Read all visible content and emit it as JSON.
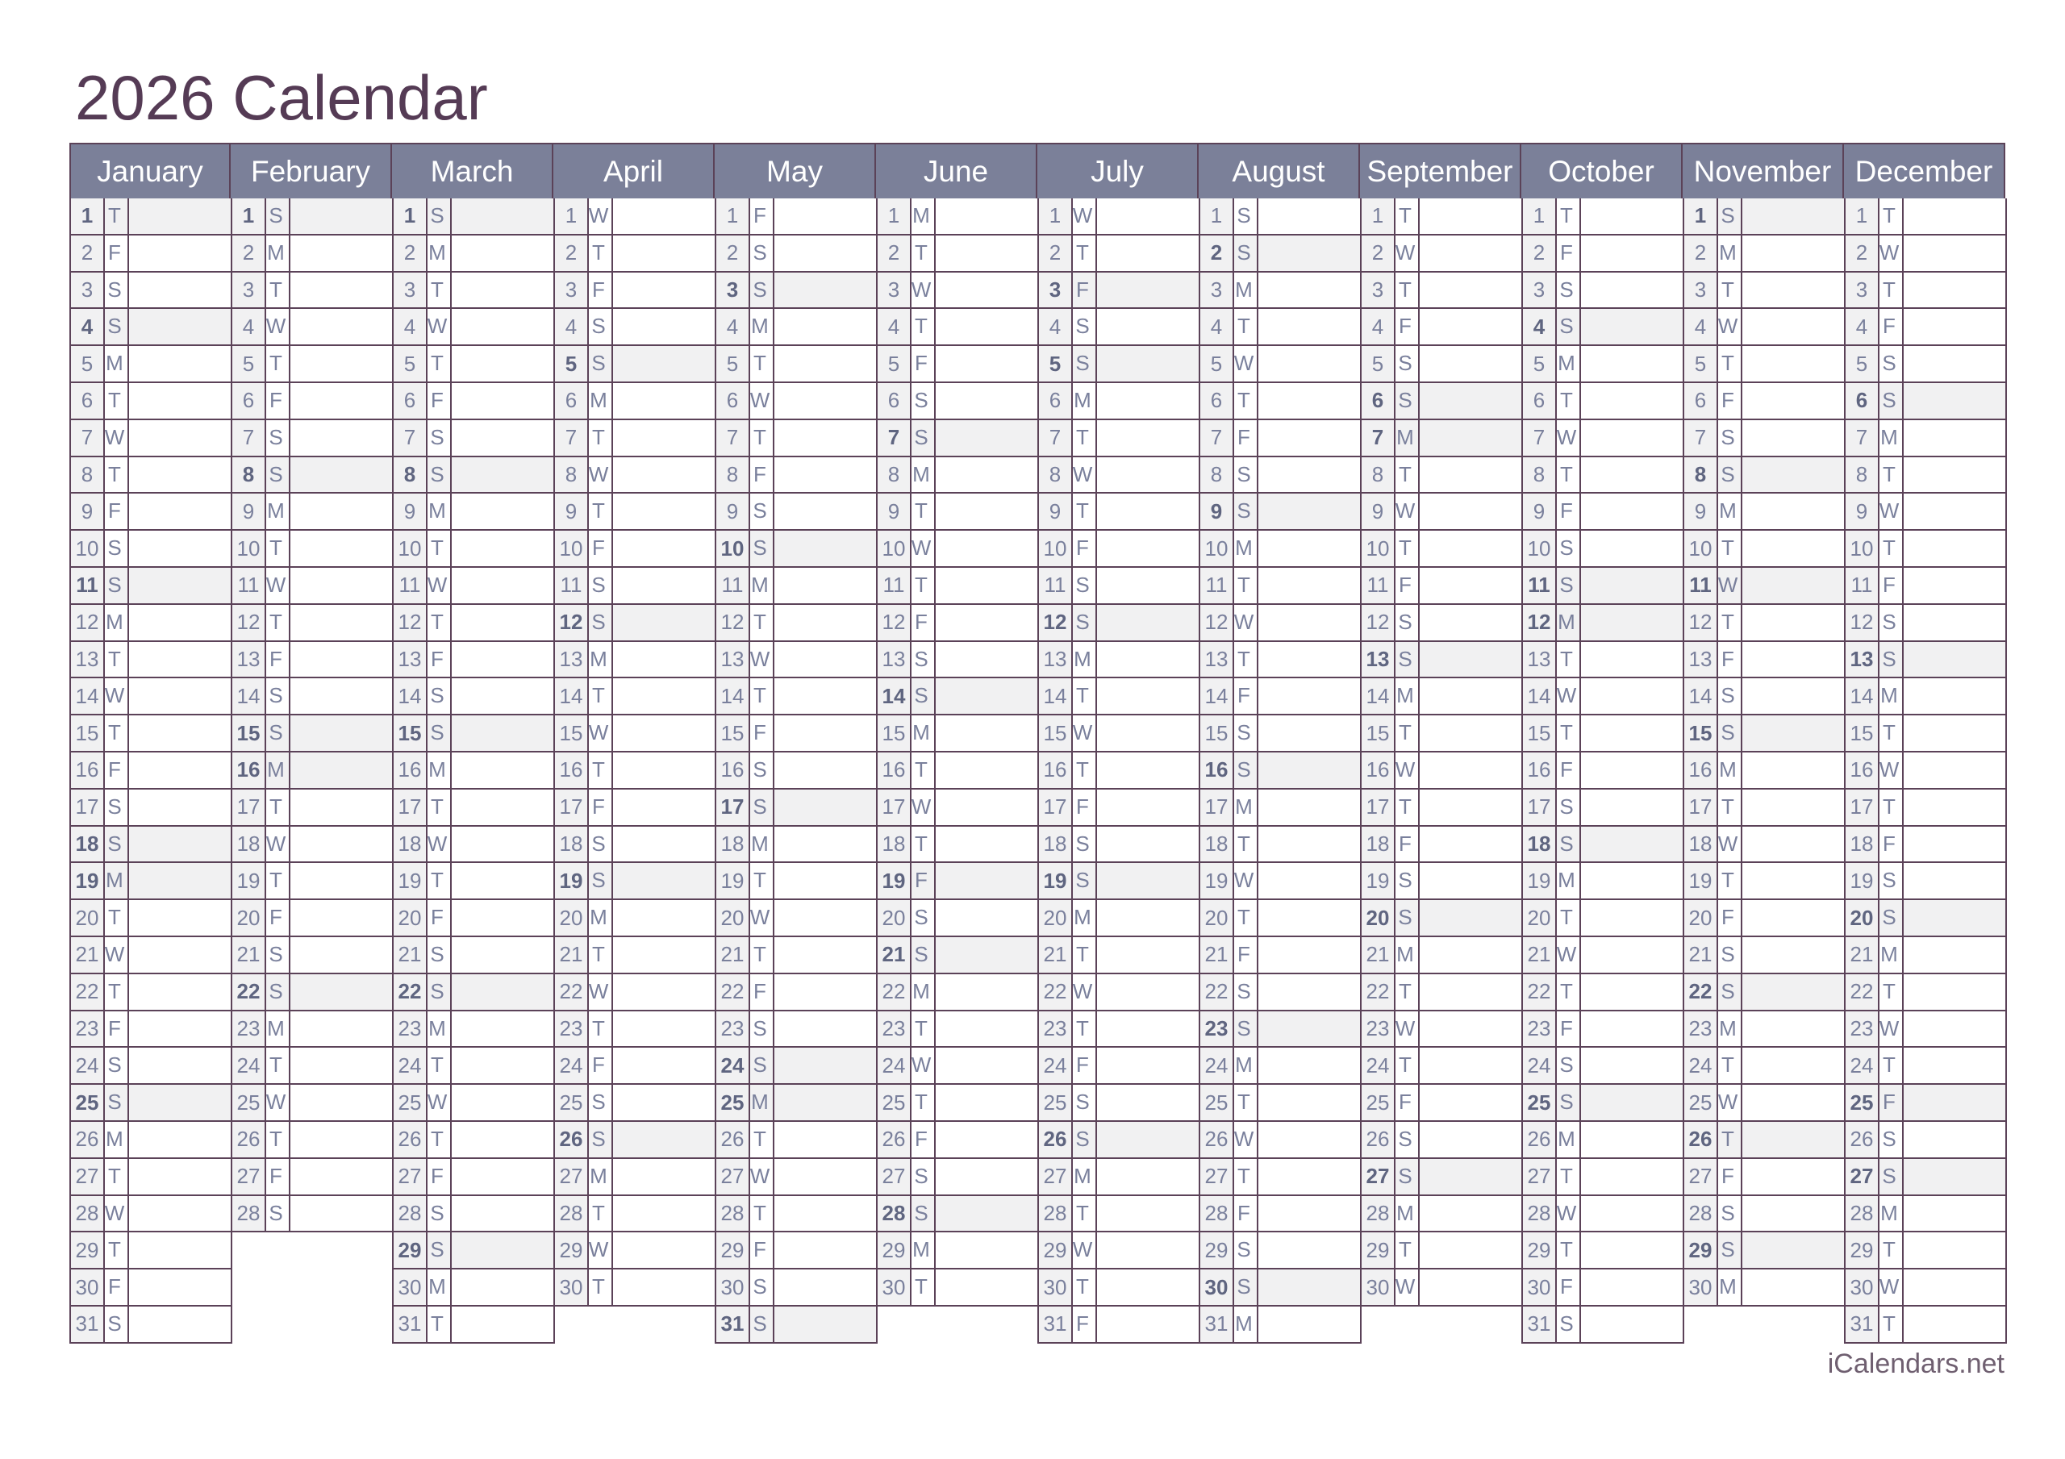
{
  "title": "2026 Calendar",
  "footer": "iCalendars.net",
  "colors": {
    "header_bg": "#7b8099",
    "border": "#5b4258",
    "title": "#553b55",
    "shade": "#f1f1f2",
    "text": "#7a809c"
  },
  "day_labels": [
    "1",
    "2",
    "3",
    "4",
    "5",
    "6",
    "7",
    "8",
    "9",
    "10",
    "11",
    "12",
    "13",
    "14",
    "15",
    "16",
    "17",
    "18",
    "19",
    "20",
    "21",
    "22",
    "23",
    "24",
    "25",
    "26",
    "27",
    "28",
    "29",
    "30",
    "31"
  ],
  "months": [
    {
      "name": "January",
      "weekdays": "TFSSMTWTFSSMTWTFSSMTWTFSSMTWTFS",
      "highlighted": [
        1,
        4,
        11,
        18,
        19,
        25
      ]
    },
    {
      "name": "February",
      "weekdays": "SMTWTFSSMTWTFSSMTWTFSSMTWTFS",
      "highlighted": [
        1,
        8,
        15,
        16,
        22
      ]
    },
    {
      "name": "March",
      "weekdays": "SMTWTFSSMTWTFSSMTWTFSSMTWTFSSMT",
      "highlighted": [
        1,
        8,
        15,
        22,
        29
      ]
    },
    {
      "name": "April",
      "weekdays": "WTFSSMTWTFSSMTWTFSSMTWTFSSMTWT",
      "highlighted": [
        5,
        12,
        19,
        26
      ]
    },
    {
      "name": "May",
      "weekdays": "FSSMTWTFSSMTWTFSSMTWTFSSMTWTFSS",
      "highlighted": [
        3,
        10,
        17,
        24,
        25,
        31
      ]
    },
    {
      "name": "June",
      "weekdays": "MTWTFSSMTWTFSSMTWTFSSMTWTFSSMT",
      "highlighted": [
        7,
        14,
        19,
        21,
        28
      ]
    },
    {
      "name": "July",
      "weekdays": "WTFSSMTWTFSSMTWTFSSMTWTFSSMTWTF",
      "highlighted": [
        3,
        5,
        12,
        19,
        26
      ]
    },
    {
      "name": "August",
      "weekdays": "SSMTWTFSSMTWTFSSMTWTFSSMTWTFSSM",
      "highlighted": [
        2,
        9,
        16,
        23,
        30
      ]
    },
    {
      "name": "September",
      "weekdays": "TWTFSSMTWTFSSMTWTFSSMTWTFSSMTW",
      "highlighted": [
        6,
        7,
        13,
        20,
        27
      ]
    },
    {
      "name": "October",
      "weekdays": "TFSSMTWTFSSMTWTFSSMTWTFSSMTWTFS",
      "highlighted": [
        4,
        11,
        12,
        18,
        25
      ]
    },
    {
      "name": "November",
      "weekdays": "SMTWTFSSMTWTFSSMTWTFSSMTWTFSSM",
      "highlighted": [
        1,
        8,
        11,
        15,
        22,
        26,
        29
      ]
    },
    {
      "name": "December",
      "weekdays": "TWTFSSMTWTFSSMTWTFSSMTWTFSSMTWT",
      "highlighted": [
        6,
        13,
        20,
        25,
        27
      ]
    }
  ]
}
